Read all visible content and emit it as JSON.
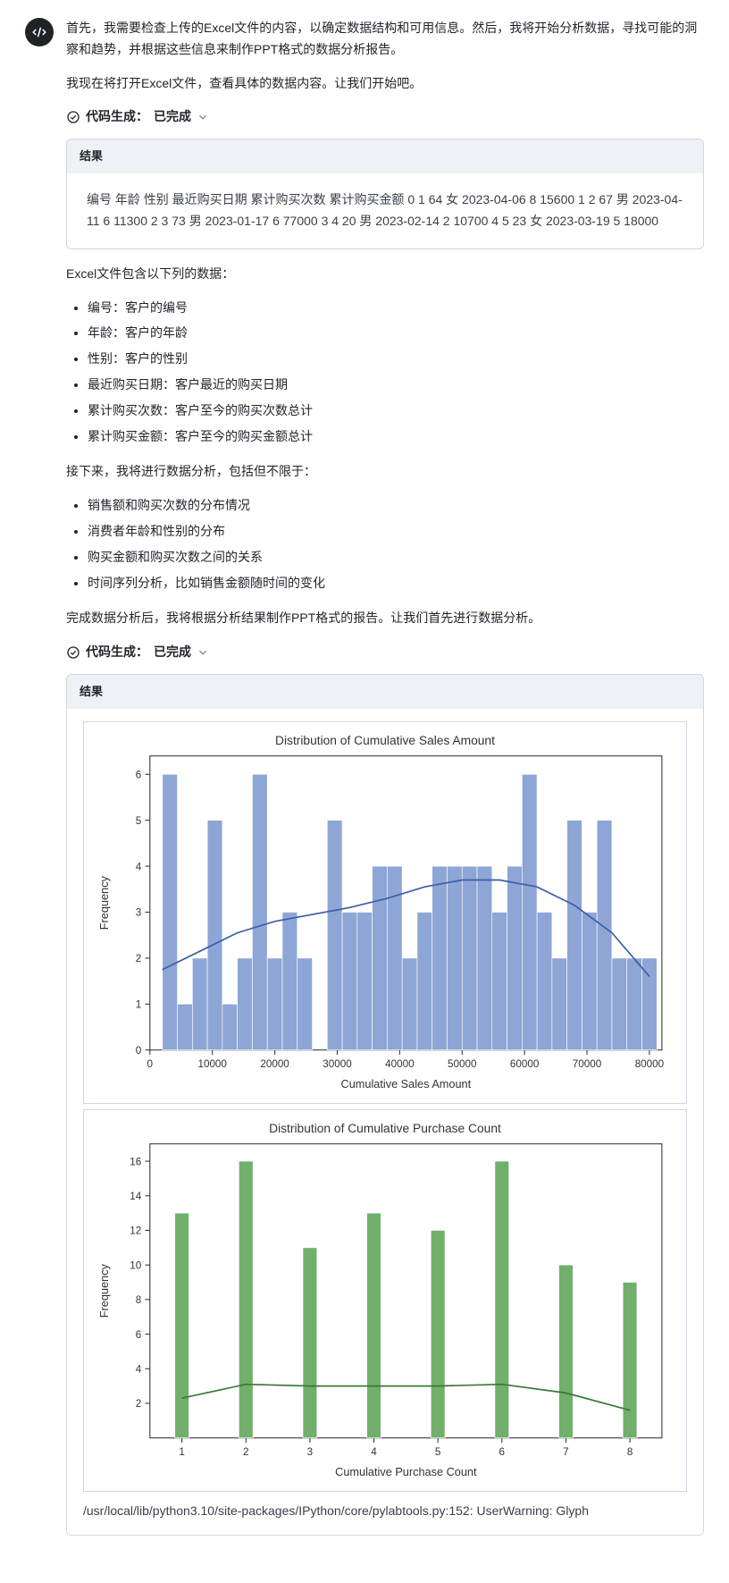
{
  "intro": {
    "p1": "首先，我需要检查上传的Excel文件的内容，以确定数据结构和可用信息。然后，我将开始分析数据，寻找可能的洞察和趋势，并根据这些信息来制作PPT格式的数据分析报告。",
    "p2": "我现在将打开Excel文件，查看具体的数据内容。让我们开始吧。"
  },
  "codegen": {
    "label_prefix": "代码生成：",
    "status": "已完成"
  },
  "result1": {
    "header": "结果",
    "text": "编号 年龄 性别 最近购买日期 累计购买次数 累计购买金额 0 1 64 女 2023-04-06 8 15600 1 2 67 男 2023-04-11 6 11300 2 3 73 男 2023-01-17 6 77000 3 4 20 男 2023-02-14 2 10700 4 5 23 女 2023-03-19 5 18000"
  },
  "after_result1": "Excel文件包含以下列的数据：",
  "columns_list": [
    "编号：客户的编号",
    "年龄：客户的年龄",
    "性别：客户的性别",
    "最近购买日期：客户最近的购买日期",
    "累计购买次数：客户至今的购买次数总计",
    "累计购买金额：客户至今的购买金额总计"
  ],
  "next_intro": "接下来，我将进行数据分析，包括但不限于：",
  "analysis_list": [
    "销售额和购买次数的分布情况",
    "消费者年龄和性别的分布",
    "购买金额和购买次数之间的关系",
    "时间序列分析，比如销售金额随时间的变化"
  ],
  "before_codegen2": "完成数据分析后，我将根据分析结果制作PPT格式的报告。让我们首先进行数据分析。",
  "result2": {
    "header": "结果"
  },
  "chart1": {
    "type": "histogram",
    "title": "Distribution of Cumulative Sales Amount",
    "xlabel": "Cumulative Sales Amount",
    "ylabel": "Frequency",
    "xlim": [
      0,
      82000
    ],
    "ylim": [
      0,
      6.4
    ],
    "xtick_step": 10000,
    "ytick_step": 1,
    "bin_width": 2400,
    "bin_start": 2000,
    "bar_color": "#8ea6d6",
    "bar_edge": "#ffffff",
    "kde_color": "#3b5fa8",
    "background": "#ffffff",
    "values": [
      6,
      1,
      2,
      5,
      1,
      2,
      6,
      2,
      3,
      2,
      0,
      5,
      3,
      3,
      4,
      4,
      2,
      3,
      4,
      4,
      4,
      4,
      3,
      4,
      6,
      3,
      2,
      5,
      3,
      5,
      2,
      2,
      2
    ],
    "kde_points": [
      [
        2000,
        1.75
      ],
      [
        8000,
        2.15
      ],
      [
        14000,
        2.55
      ],
      [
        20000,
        2.8
      ],
      [
        26000,
        2.95
      ],
      [
        32000,
        3.1
      ],
      [
        38000,
        3.3
      ],
      [
        44000,
        3.55
      ],
      [
        50000,
        3.7
      ],
      [
        56000,
        3.7
      ],
      [
        62000,
        3.55
      ],
      [
        68000,
        3.15
      ],
      [
        74000,
        2.55
      ],
      [
        80000,
        1.6
      ]
    ]
  },
  "chart2": {
    "type": "bar",
    "title": "Distribution of Cumulative Purchase Count",
    "xlabel": "Cumulative Purchase Count",
    "ylabel": "Frequency",
    "categories": [
      1,
      2,
      3,
      4,
      5,
      6,
      7,
      8
    ],
    "values": [
      13,
      16,
      11,
      13,
      12,
      16,
      10,
      9
    ],
    "ylim": [
      0,
      17
    ],
    "yticks": [
      2,
      4,
      6,
      8,
      10,
      12,
      14,
      16
    ],
    "bar_color": "#70b06a",
    "bar_edge": "#ffffff",
    "kde_color": "#3a7a36",
    "background": "#ffffff",
    "kde_points": [
      [
        1,
        2.3
      ],
      [
        2,
        3.1
      ],
      [
        3,
        3.0
      ],
      [
        4,
        3.0
      ],
      [
        5,
        3.0
      ],
      [
        6,
        3.1
      ],
      [
        7,
        2.6
      ],
      [
        8,
        1.6
      ]
    ]
  },
  "warning": "/usr/local/lib/python3.10/site-packages/IPython/core/pylabtools.py:152: UserWarning: Glyph"
}
